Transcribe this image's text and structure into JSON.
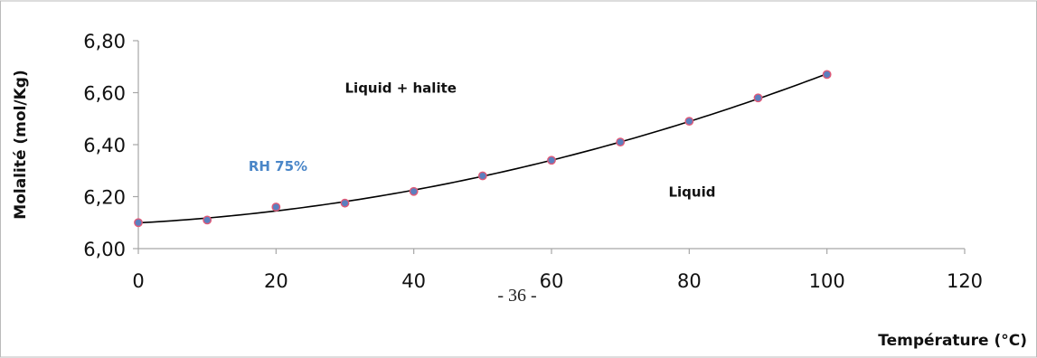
{
  "page_number": "- 36 -",
  "chart_data": {
    "type": "scatter",
    "title": "",
    "xlabel": "Température (°C)",
    "ylabel": "Molalité (mol/Kg)",
    "xlim": [
      0,
      120
    ],
    "ylim": [
      6.0,
      6.8
    ],
    "x_ticks": [
      0,
      20,
      40,
      60,
      80,
      100,
      120
    ],
    "y_ticks": [
      6.0,
      6.2,
      6.4,
      6.6,
      6.8
    ],
    "x_tick_labels": [
      "0",
      "20",
      "40",
      "60",
      "80",
      "100",
      "120"
    ],
    "y_tick_labels": [
      "6,00",
      "6,20",
      "6,40",
      "6,60",
      "6,80"
    ],
    "grid": false,
    "series": [
      {
        "x": [
          0,
          10,
          20,
          30,
          40,
          50,
          60,
          70,
          80,
          90,
          100
        ],
        "y": [
          6.1,
          6.11,
          6.16,
          6.175,
          6.22,
          6.28,
          6.34,
          6.41,
          6.49,
          6.58,
          6.67
        ],
        "marker_fill": "#5b7fbf",
        "marker_edge": "#e05a78"
      }
    ],
    "trendline": {
      "type": "polynomial",
      "x_range": [
        0,
        100
      ],
      "color": "#000000"
    },
    "annotations": [
      {
        "text": "Liquid + halite",
        "x": 30,
        "y": 6.6,
        "color": "#111111"
      },
      {
        "text": "RH 75%",
        "x": 16,
        "y": 6.3,
        "color": "#4a86c8"
      },
      {
        "text": "Liquid",
        "x": 77,
        "y": 6.2,
        "color": "#111111"
      }
    ]
  }
}
